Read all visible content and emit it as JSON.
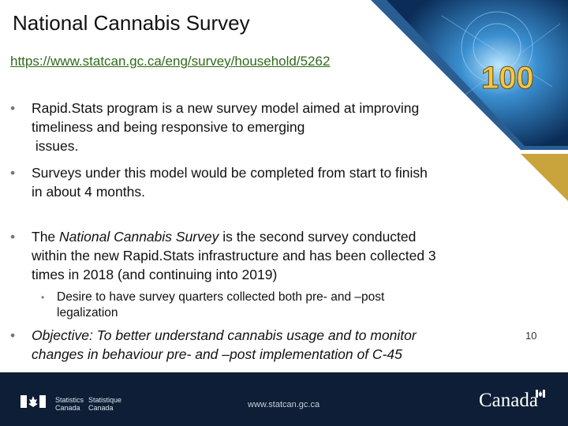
{
  "slide": {
    "title": "National Cannabis Survey",
    "link": "https://www.statcan.gc.ca/eng/survey/household/5262",
    "bullets": [
      {
        "lines": [
          "Rapid.Stats program is a new survey model aimed at improving",
          "timeliness and being responsive to emerging",
          " issues."
        ]
      },
      {
        "lines": [
          "Surveys under this model would be completed from start to finish",
          "in about 4 months."
        ]
      }
    ],
    "bullet3": {
      "pre": "The ",
      "em": "National Cannabis Survey",
      "post": " is the second survey conducted",
      "line2": "within the new Rapid.Stats infrastructure and has been collected 3",
      "line3": "times in 2018 (and continuing into 2019)"
    },
    "sub_bullet": {
      "line1": "Desire to have survey quarters collected both pre- and –post",
      "line2": "legalization"
    },
    "objective": {
      "line1": "Objective: To better understand cannabis usage and to monitor",
      "line2": "changes in behaviour pre- and –post implementation of C-45"
    },
    "page_number": "10",
    "corner_image_text": "100"
  },
  "footer": {
    "statcan_en": [
      "Statistics",
      "Canada"
    ],
    "statcan_fr": [
      "Statistique",
      "Canada"
    ],
    "url": "www.statcan.gc.ca",
    "wordmark": "Canada"
  },
  "colors": {
    "link": "#2f6b1a",
    "footer_bg": "#0d1e36",
    "gold": "#c9a33b",
    "corner_blue": "#1d4f86"
  }
}
